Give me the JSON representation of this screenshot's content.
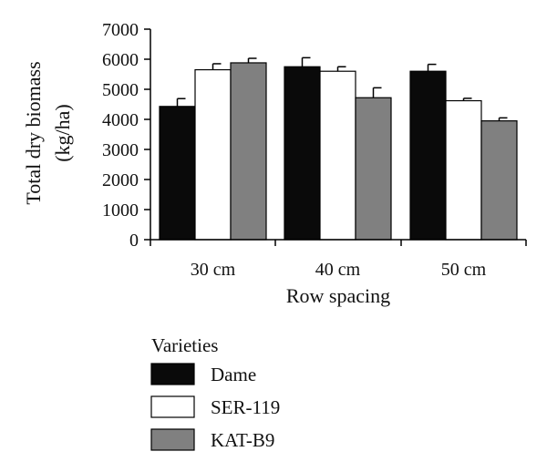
{
  "chart_data": {
    "type": "bar",
    "title": "",
    "xlabel": "Row spacing",
    "ylabel": "Total dry biomass",
    "ylabel_unit": "(kg/ha)",
    "categories": [
      "30 cm",
      "40 cm",
      "50 cm"
    ],
    "ylim": [
      0,
      7000
    ],
    "yticks": [
      0,
      1000,
      2000,
      3000,
      4000,
      5000,
      6000,
      7000
    ],
    "grid": false,
    "legend": {
      "title": "Varieties",
      "position": "bottom"
    },
    "series": [
      {
        "name": "Dame",
        "color": "#0a0a0a",
        "values": [
          4430,
          5750,
          5600
        ],
        "errors": [
          260,
          300,
          230
        ]
      },
      {
        "name": "SER-119",
        "color": "#ffffff",
        "values": [
          5650,
          5600,
          4620
        ],
        "errors": [
          200,
          150,
          80
        ]
      },
      {
        "name": "KAT-B9",
        "color": "#808080",
        "values": [
          5880,
          4720,
          3950
        ],
        "errors": [
          150,
          330,
          100
        ]
      }
    ]
  }
}
